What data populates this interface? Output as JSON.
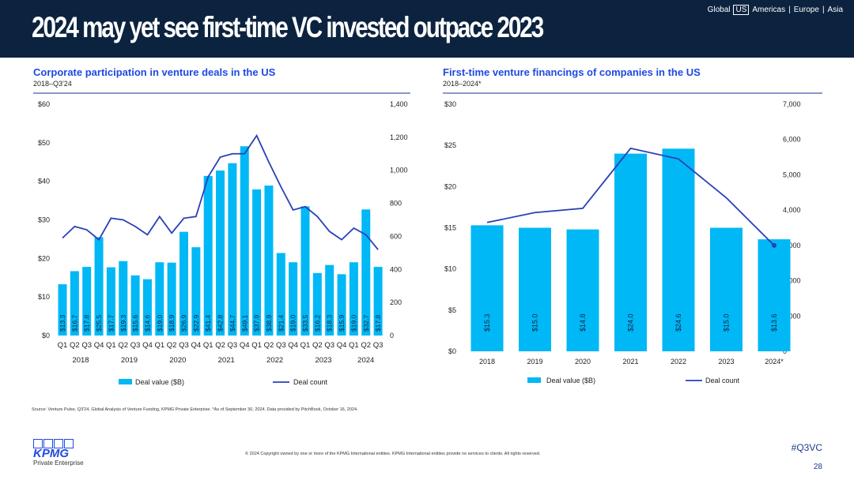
{
  "header": {
    "title": "2024 may yet see first-time VC invested outpace 2023",
    "regions": [
      "Global",
      "US",
      "Americas",
      "Europe",
      "Asia"
    ],
    "selected_region": "US"
  },
  "footer": {
    "source": "Source: Venture Pulse, Q3'24, Global Analysis of Venture Funding, KPMG Private Enterprise. *As of September 30, 2024. Data provided by PitchBook, October 16, 2024.",
    "copyright": "© 2024 Copyright owned by one or more of the KPMG International entities. KPMG International entities provide no services to clients. All rights reserved.",
    "hashtag": "#Q3VC",
    "page": "28",
    "logo": "KPMG",
    "logo_sub": "Private Enterprise"
  },
  "colors": {
    "bar": "#00b8f5",
    "line": "#2a3fb8",
    "header": "#0c2340",
    "accent": "#1e49e2"
  },
  "chart_data": [
    {
      "type": "bar+line",
      "title": "Corporate participation in venture deals in the US",
      "subtitle": "2018–Q3'24",
      "categories": [
        "Q1",
        "Q2",
        "Q3",
        "Q4",
        "Q1",
        "Q2",
        "Q3",
        "Q4",
        "Q1",
        "Q2",
        "Q3",
        "Q4",
        "Q1",
        "Q2",
        "Q3",
        "Q4",
        "Q1",
        "Q2",
        "Q3",
        "Q4",
        "Q1",
        "Q2",
        "Q3",
        "Q4",
        "Q1",
        "Q2",
        "Q3"
      ],
      "years": [
        "2018",
        "2019",
        "2020",
        "2021",
        "2022",
        "2023",
        "2024"
      ],
      "series": [
        {
          "name": "Deal value ($B)",
          "axis": "left",
          "type": "bar",
          "values": [
            13.3,
            16.7,
            17.8,
            25.5,
            17.7,
            19.3,
            15.6,
            14.6,
            19.0,
            18.9,
            26.9,
            22.9,
            41.4,
            42.8,
            44.7,
            49.1,
            37.9,
            38.9,
            21.4,
            19.0,
            33.5,
            16.2,
            18.3,
            15.9,
            19.0,
            32.7,
            17.8
          ],
          "labels": [
            "$13.3",
            "$16.7",
            "$17.8",
            "$25.5",
            "$17.7",
            "$19.3",
            "$15.6",
            "$14.6",
            "$19.0",
            "$18.9",
            "$26.9",
            "$22.9",
            "$41.4",
            "$42.8",
            "$44.7",
            "$49.1",
            "$37.9",
            "$38.9",
            "$21.4",
            "$19.0",
            "$33.5",
            "$16.2",
            "$18.3",
            "$15.9",
            "$19.0",
            "$32.7",
            "$17.8"
          ]
        },
        {
          "name": "Deal count",
          "axis": "right",
          "type": "line",
          "values": [
            590,
            660,
            640,
            580,
            710,
            700,
            660,
            610,
            720,
            620,
            710,
            720,
            960,
            1080,
            1100,
            1100,
            1210,
            1050,
            900,
            760,
            780,
            720,
            630,
            580,
            650,
            610,
            520
          ]
        }
      ],
      "ylim_left": [
        0,
        60
      ],
      "yticks_left": [
        "$0",
        "$10",
        "$20",
        "$30",
        "$40",
        "$50",
        "$60"
      ],
      "ylim_right": [
        0,
        1400
      ],
      "yticks_right": [
        "0",
        "200",
        "400",
        "600",
        "800",
        "1,000",
        "1,200",
        "1,400"
      ]
    },
    {
      "type": "bar+line",
      "title": "First-time venture financings of companies in the US",
      "subtitle": "2018–2024*",
      "categories": [
        "2018",
        "2019",
        "2020",
        "2021",
        "2022",
        "2023",
        "2024*"
      ],
      "series": [
        {
          "name": "Deal value ($B)",
          "axis": "left",
          "type": "bar",
          "values": [
            15.3,
            15.0,
            14.8,
            24.0,
            24.6,
            15.0,
            13.6
          ],
          "labels": [
            "$15.3",
            "$15.0",
            "$14.8",
            "$24.0",
            "$24.6",
            "$15.0",
            "$13.6"
          ]
        },
        {
          "name": "Deal count",
          "axis": "right",
          "type": "line",
          "values": [
            3650,
            3930,
            4050,
            5750,
            5450,
            4350,
            3000
          ]
        }
      ],
      "ylim_left": [
        0,
        30
      ],
      "yticks_left": [
        "$0",
        "$5",
        "$10",
        "$15",
        "$20",
        "$25",
        "$30"
      ],
      "ylim_right": [
        0,
        7000
      ],
      "yticks_right": [
        "0",
        "1,000",
        "2,000",
        "3,000",
        "4,000",
        "5,000",
        "6,000",
        "7,000"
      ]
    }
  ]
}
